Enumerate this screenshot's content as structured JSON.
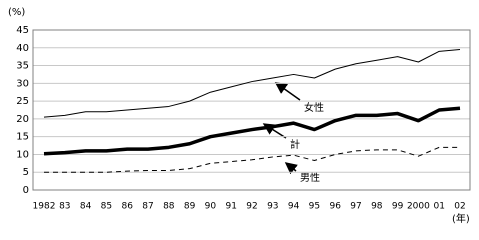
{
  "chart_data": {
    "type": "line",
    "y_label": "(%)",
    "x_label": "(年)",
    "categories": [
      "1982",
      "83",
      "84",
      "85",
      "86",
      "87",
      "88",
      "89",
      "90",
      "91",
      "92",
      "93",
      "94",
      "95",
      "96",
      "97",
      "98",
      "99",
      "2000",
      "01",
      "02"
    ],
    "series": [
      {
        "name": "女性",
        "color": "#000000",
        "width": 1,
        "dash": "none",
        "values": [
          20.5,
          21,
          22,
          22,
          22.5,
          23,
          23.5,
          25,
          27.5,
          29,
          30.5,
          31.5,
          32.5,
          31.5,
          34,
          35.5,
          36.5,
          37.5,
          36,
          39,
          39.5
        ]
      },
      {
        "name": "計",
        "color": "#000000",
        "width": 3.5,
        "dash": "none",
        "values": [
          10.2,
          10.5,
          11,
          11,
          11.5,
          11.5,
          12,
          13,
          15,
          16,
          17,
          17.8,
          18.8,
          17,
          19.5,
          21,
          21,
          21.5,
          19.5,
          22.5,
          23
        ]
      },
      {
        "name": "男性",
        "color": "#000000",
        "width": 1,
        "dash": "5,4",
        "values": [
          5,
          5,
          5,
          5,
          5.3,
          5.5,
          5.5,
          6,
          7.5,
          8,
          8.5,
          9.3,
          9.8,
          8.3,
          10,
          11,
          11.3,
          11.3,
          9.5,
          12,
          12
        ]
      }
    ],
    "ylim": [
      0,
      45
    ],
    "yticks": [
      0,
      5,
      10,
      15,
      20,
      25,
      30,
      35,
      40,
      45
    ],
    "grid": true
  }
}
